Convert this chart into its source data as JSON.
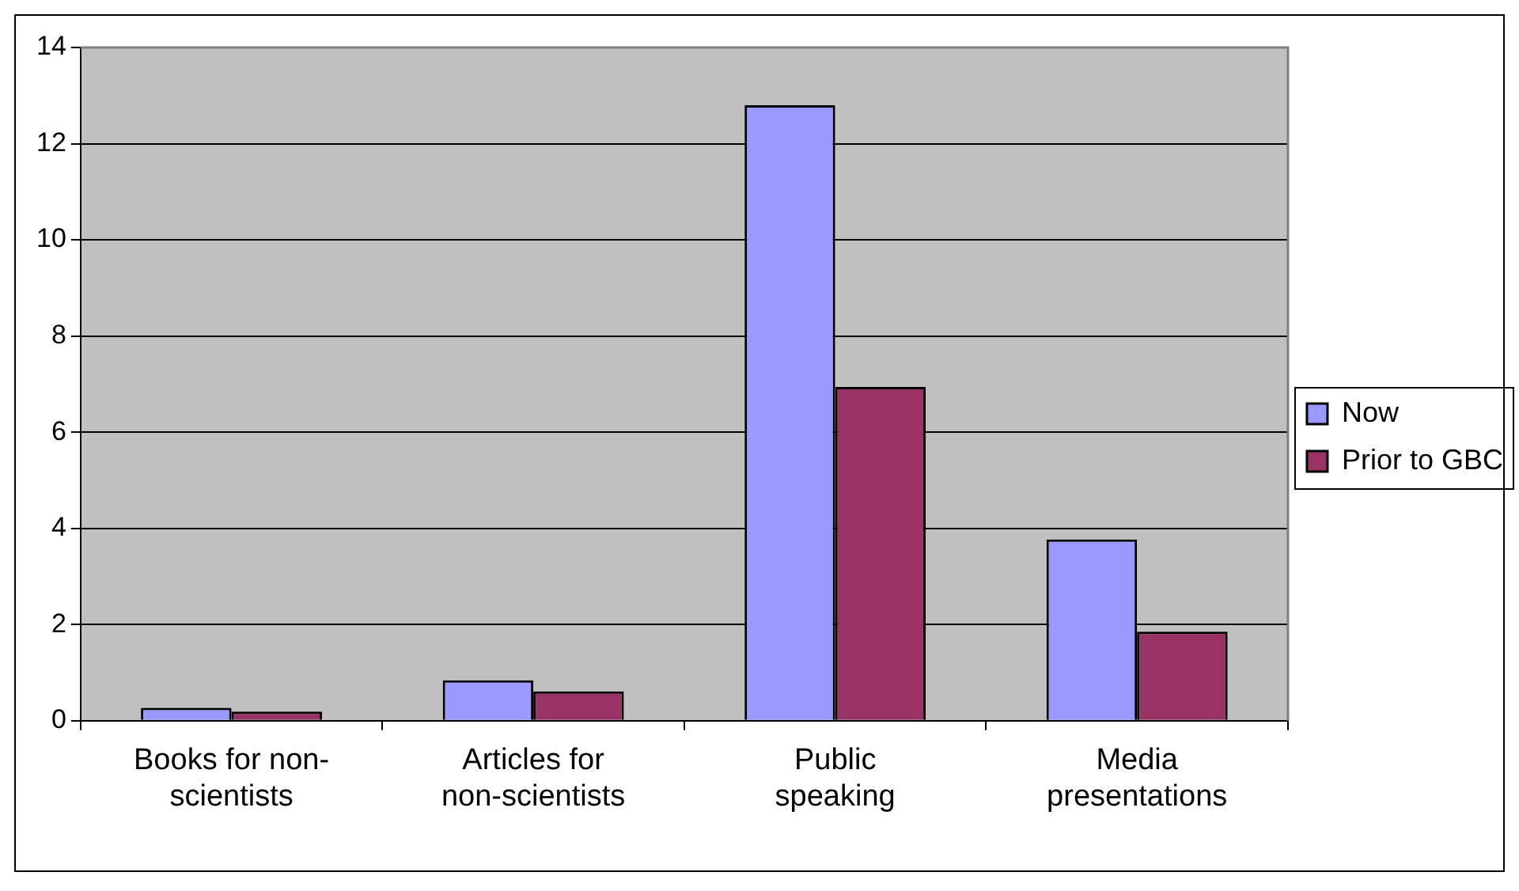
{
  "chart_data": {
    "type": "bar",
    "categories": [
      "Books for non-scientists",
      "Articles for non-scientists",
      "Public speaking",
      "Media presentations"
    ],
    "series": [
      {
        "name": "Now",
        "color": "#9999ff",
        "values": [
          0.27,
          0.84,
          12.8,
          3.77
        ]
      },
      {
        "name": "Prior to GBC",
        "color": "#993366",
        "values": [
          0.19,
          0.61,
          6.94,
          1.85
        ]
      }
    ],
    "ylim": [
      0,
      14
    ],
    "yticks": [
      0,
      2,
      4,
      6,
      8,
      10,
      12,
      14
    ],
    "grid": "y",
    "legend": "right"
  }
}
